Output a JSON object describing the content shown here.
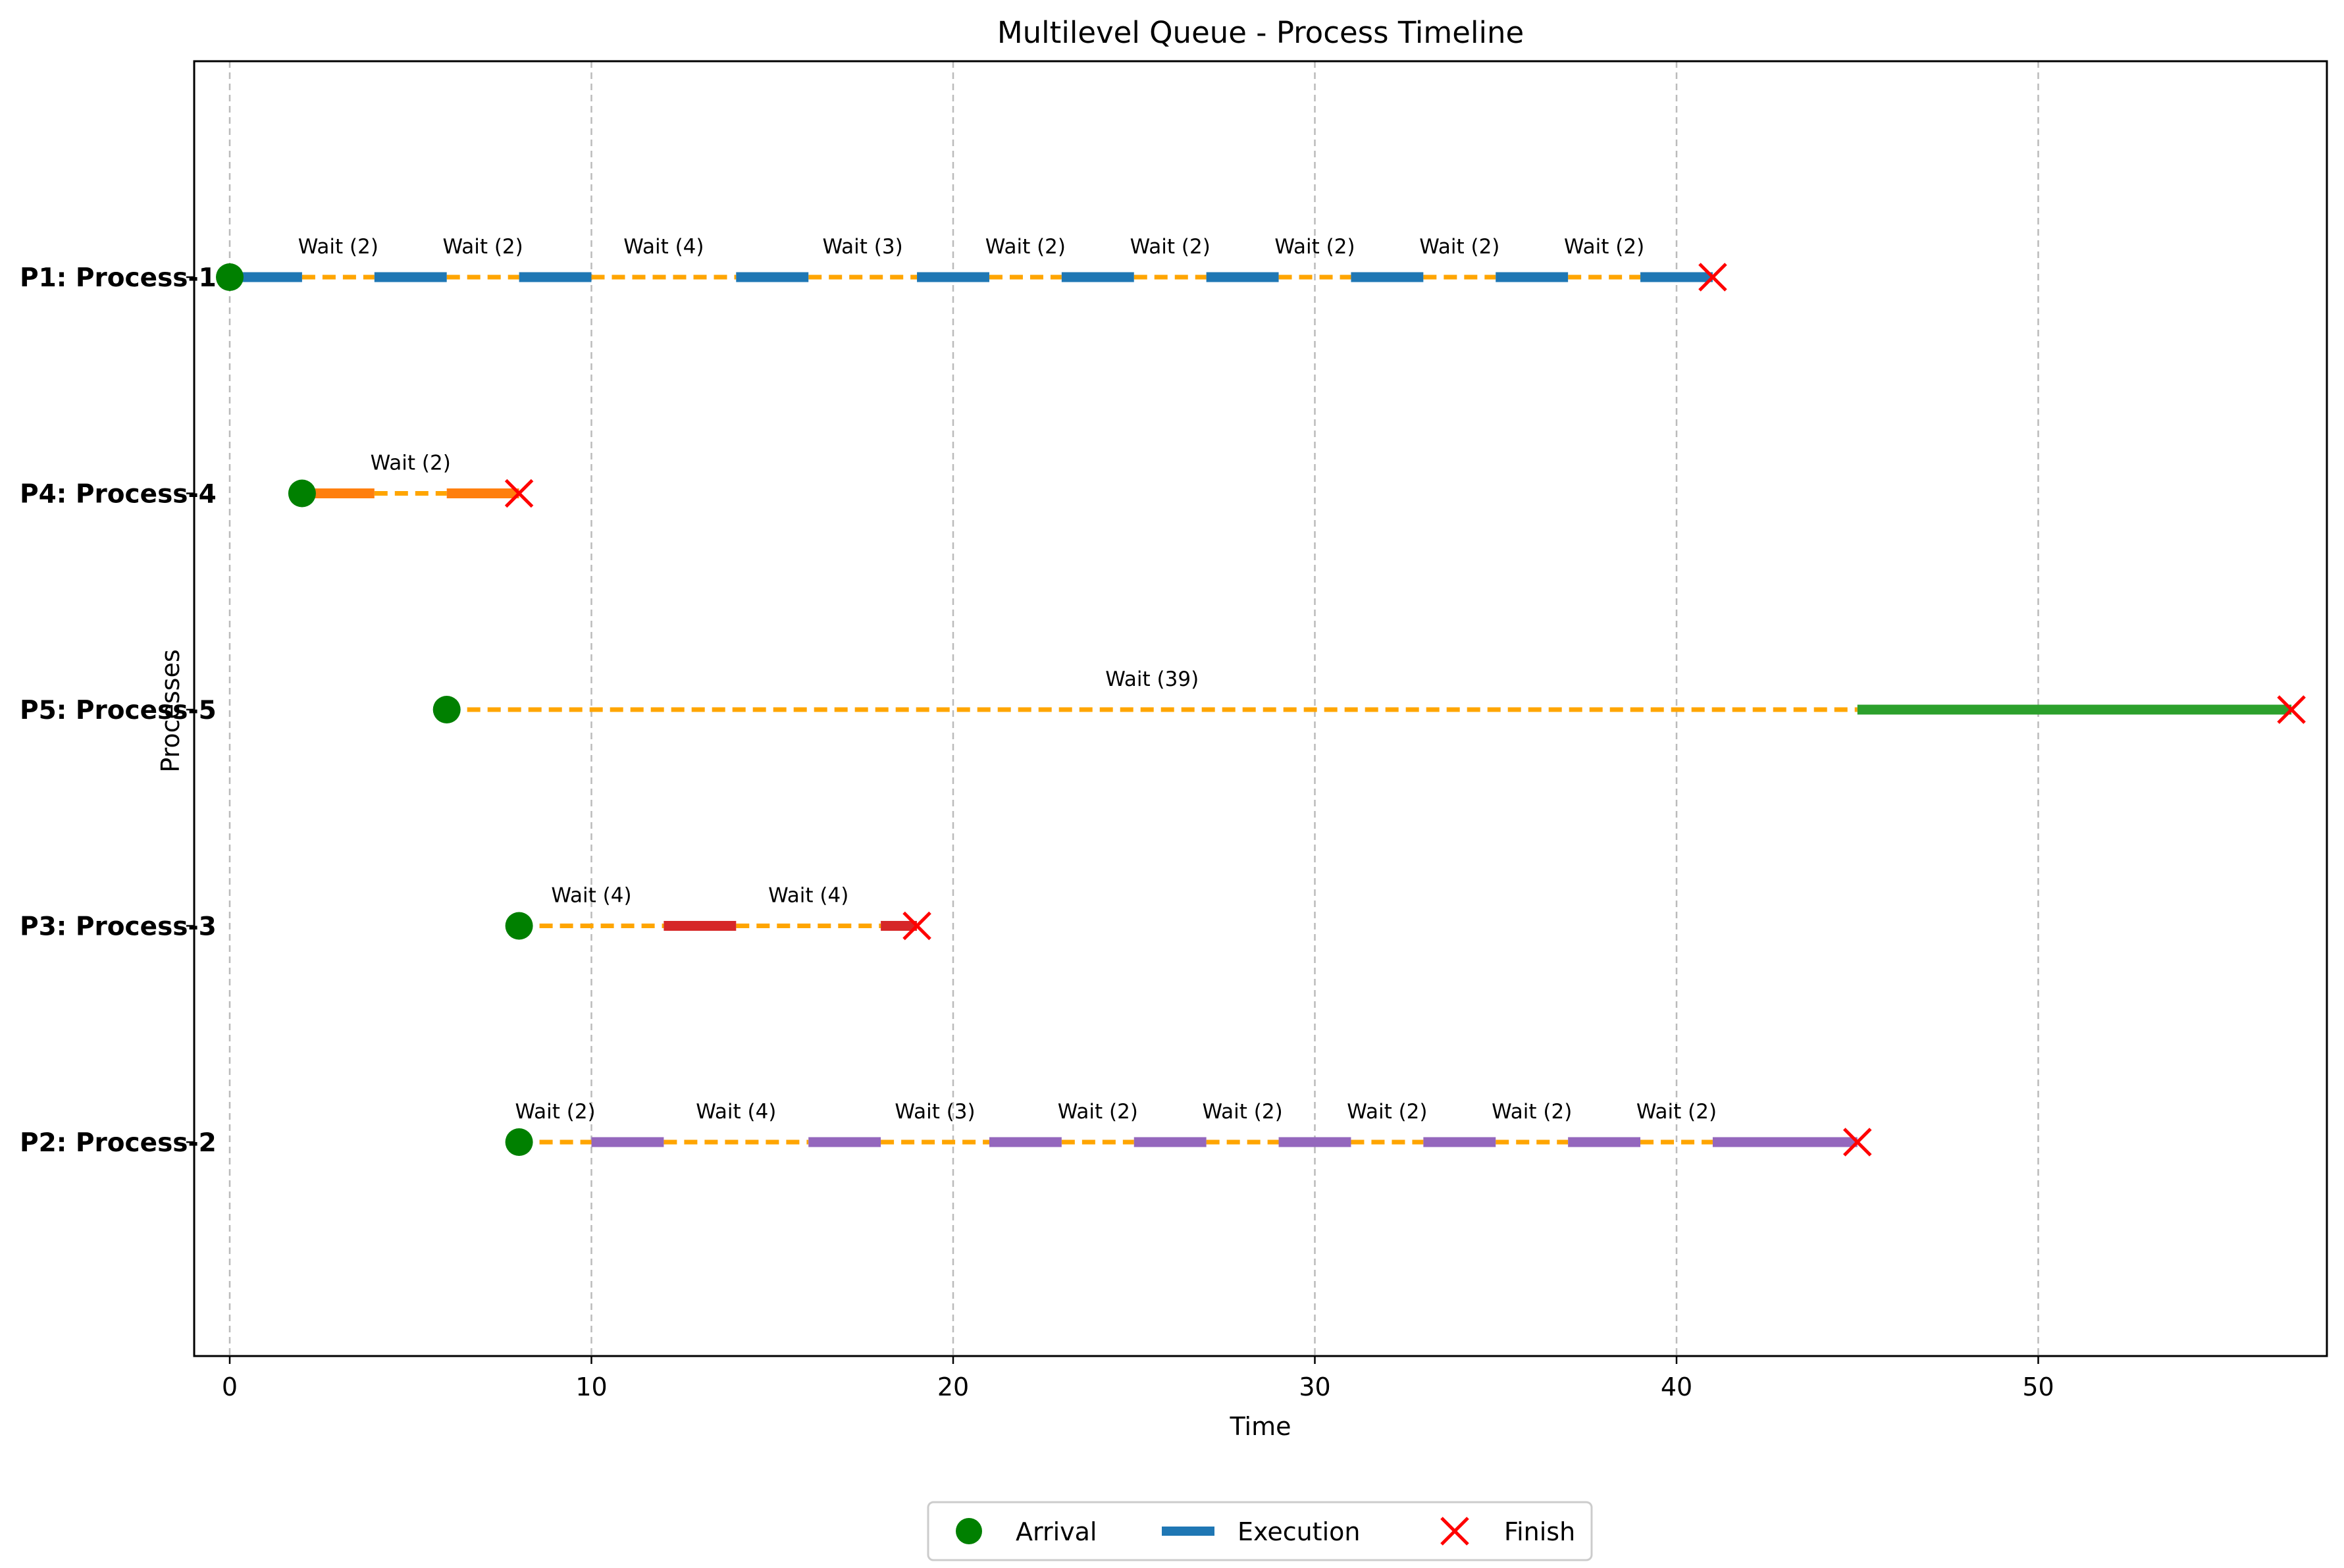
{
  "chart_data": {
    "type": "gantt",
    "title": "Multilevel Queue - Process Timeline",
    "xlabel": "Time",
    "ylabel": "Processes",
    "xlim": [
      -1,
      58
    ],
    "xticks": [
      0,
      10,
      20,
      30,
      40,
      50
    ],
    "grid": "vertical dashed",
    "legend": {
      "placement": "bottom-center (below axes)",
      "entries": [
        {
          "label": "Arrival",
          "kind": "marker",
          "color": "#008000"
        },
        {
          "label": "Execution",
          "kind": "line",
          "color": "#1f77b4"
        },
        {
          "label": "Finish",
          "kind": "x",
          "color": "#ff0000"
        }
      ]
    },
    "colors": {
      "wait": "#ffa500",
      "arrival": "#008000",
      "finish": "#ff0000",
      "grid": "#bbbbbb"
    },
    "processes": [
      {
        "label": "P1: Process-1",
        "color": "#1f77b4",
        "arrival": 0,
        "finish": 41,
        "execution": [
          [
            0,
            2
          ],
          [
            4,
            6
          ],
          [
            8,
            10
          ],
          [
            14,
            16
          ],
          [
            19,
            21
          ],
          [
            23,
            25
          ],
          [
            27,
            29
          ],
          [
            31,
            33
          ],
          [
            35,
            37
          ],
          [
            39,
            41
          ]
        ],
        "waits": [
          {
            "start": 2,
            "end": 4,
            "label": "Wait (2)"
          },
          {
            "start": 6,
            "end": 8,
            "label": "Wait (2)"
          },
          {
            "start": 10,
            "end": 14,
            "label": "Wait (4)"
          },
          {
            "start": 16,
            "end": 19,
            "label": "Wait (3)"
          },
          {
            "start": 21,
            "end": 23,
            "label": "Wait (2)"
          },
          {
            "start": 25,
            "end": 27,
            "label": "Wait (2)"
          },
          {
            "start": 29,
            "end": 31,
            "label": "Wait (2)"
          },
          {
            "start": 33,
            "end": 35,
            "label": "Wait (2)"
          },
          {
            "start": 37,
            "end": 39,
            "label": "Wait (2)"
          }
        ]
      },
      {
        "label": "P4: Process-4",
        "color": "#ff7f0e",
        "arrival": 2,
        "finish": 8,
        "execution": [
          [
            2,
            4
          ],
          [
            6,
            8
          ]
        ],
        "waits": [
          {
            "start": 4,
            "end": 6,
            "label": "Wait (2)"
          }
        ]
      },
      {
        "label": "P5: Process-5",
        "color": "#2ca02c",
        "arrival": 6,
        "finish": 57,
        "execution": [
          [
            45,
            57
          ]
        ],
        "waits": [
          {
            "start": 6,
            "end": 45,
            "label": "Wait (39)"
          }
        ]
      },
      {
        "label": "P3: Process-3",
        "color": "#d62728",
        "arrival": 8,
        "finish": 19,
        "execution": [
          [
            12,
            14
          ],
          [
            18,
            19
          ]
        ],
        "waits": [
          {
            "start": 8,
            "end": 12,
            "label": "Wait (4)"
          },
          {
            "start": 14,
            "end": 18,
            "label": "Wait (4)"
          }
        ]
      },
      {
        "label": "P2: Process-2",
        "color": "#9467bd",
        "arrival": 8,
        "finish": 45,
        "execution": [
          [
            10,
            12
          ],
          [
            16,
            18
          ],
          [
            21,
            23
          ],
          [
            25,
            27
          ],
          [
            29,
            31
          ],
          [
            33,
            35
          ],
          [
            37,
            39
          ],
          [
            41,
            45
          ]
        ],
        "waits": [
          {
            "start": 8,
            "end": 10,
            "label": "Wait (2)"
          },
          {
            "start": 12,
            "end": 16,
            "label": "Wait (4)"
          },
          {
            "start": 18,
            "end": 21,
            "label": "Wait (3)"
          },
          {
            "start": 23,
            "end": 25,
            "label": "Wait (2)"
          },
          {
            "start": 27,
            "end": 29,
            "label": "Wait (2)"
          },
          {
            "start": 31,
            "end": 33,
            "label": "Wait (2)"
          },
          {
            "start": 35,
            "end": 37,
            "label": "Wait (2)"
          },
          {
            "start": 39,
            "end": 41,
            "label": "Wait (2)"
          }
        ]
      }
    ]
  }
}
